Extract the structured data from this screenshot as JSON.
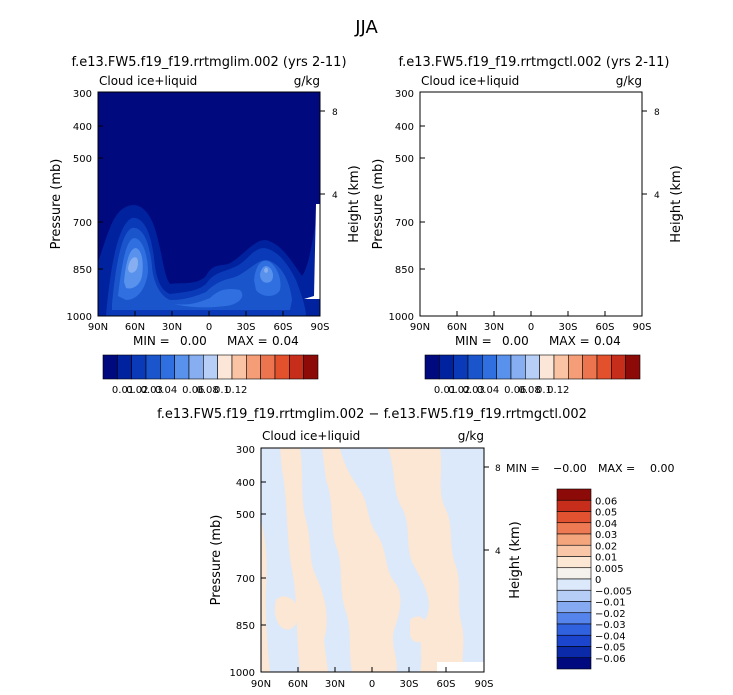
{
  "page_title": "JJA",
  "colors": {
    "abs": [
      "#000a7e",
      "#01229e",
      "#0a3ab8",
      "#1a55cc",
      "#2f6fe0",
      "#5892ec",
      "#86aef0",
      "#b7cff7",
      "#fbe6d7",
      "#f9c3a4",
      "#f49d77",
      "#ec754f",
      "#e2502c",
      "#c72d1b",
      "#8c0b09"
    ],
    "diff": [
      "#000a7e",
      "#0b2aaa",
      "#1b45cc",
      "#3062e0",
      "#5584ec",
      "#86aaf2",
      "#b6cdf6",
      "#dbe9fb",
      "#f5f1ec",
      "#fce6d4",
      "#f9c7a8",
      "#f5a57c",
      "#ee7a54",
      "#e25230",
      "#c72d1b",
      "#8c0b09"
    ]
  },
  "chart_data": [
    {
      "type": "contour",
      "title": "f.e13.FW5.f19_f19.rrtmglim.002 (yrs 2-11)",
      "left_label": "Cloud ice+liquid",
      "units": "g/kg",
      "ylabel": "Pressure (mb)",
      "y2label": "Height (km)",
      "x_ticks": [
        "90N",
        "60N",
        "30N",
        "0",
        "30S",
        "60S",
        "90S"
      ],
      "y_ticks": [
        "300",
        "400",
        "500",
        "700",
        "850",
        "1000"
      ],
      "y2_ticks": [
        "8",
        "4"
      ],
      "min_label": "MIN =",
      "min_value": "0.00",
      "max_label": "MAX =",
      "max_value": "0.04",
      "colorbar_labels": [
        "0.01",
        "0.02",
        "0.03",
        "0.04",
        "0.06",
        "0.08",
        "0.1",
        "0.12"
      ]
    },
    {
      "type": "contour",
      "title": "f.e13.FW5.f19_f19.rrtmgctl.002 (yrs 2-11)",
      "left_label": "Cloud ice+liquid",
      "units": "g/kg",
      "ylabel": "Pressure (mb)",
      "y2label": "Height (km)",
      "x_ticks": [
        "90N",
        "60N",
        "30N",
        "0",
        "30S",
        "60S",
        "90S"
      ],
      "y_ticks": [
        "300",
        "400",
        "500",
        "700",
        "850",
        "1000"
      ],
      "y2_ticks": [
        "8",
        "4"
      ],
      "min_label": "MIN =",
      "min_value": "0.00",
      "max_label": "MAX =",
      "max_value": "0.04",
      "colorbar_labels": [
        "0.01",
        "0.02",
        "0.03",
        "0.04",
        "0.06",
        "0.08",
        "0.1",
        "0.12"
      ]
    },
    {
      "type": "contour",
      "title": "f.e13.FW5.f19_f19.rrtmglim.002 − f.e13.FW5.f19_f19.rrtmgctl.002",
      "left_label": "Cloud ice+liquid",
      "units": "g/kg",
      "ylabel": "Pressure (mb)",
      "y2label": "Height (km)",
      "x_ticks": [
        "90N",
        "60N",
        "30N",
        "0",
        "30S",
        "60S",
        "90S"
      ],
      "y_ticks": [
        "300",
        "400",
        "500",
        "700",
        "850",
        "1000"
      ],
      "y2_ticks": [
        "8",
        "4"
      ],
      "min_label": "MIN =",
      "min_value": "−0.00",
      "max_label": "MAX =",
      "max_value": "0.00",
      "colorbar_labels": [
        "0.06",
        "0.05",
        "0.04",
        "0.03",
        "0.02",
        "0.01",
        "0.005",
        "0",
        "−0.005",
        "−0.01",
        "−0.02",
        "−0.03",
        "−0.04",
        "−0.05",
        "−0.06"
      ]
    }
  ]
}
